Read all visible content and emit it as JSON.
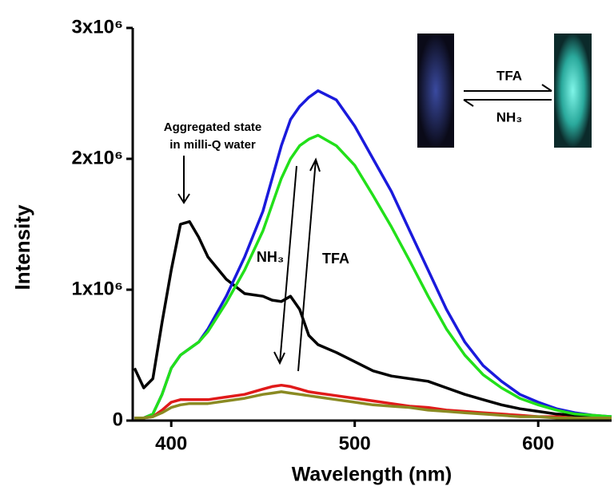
{
  "chart_data": {
    "type": "line",
    "xlabel": "Wavelength (nm)",
    "ylabel": "Intensity",
    "xlim": [
      379,
      640
    ],
    "ylim": [
      0,
      3000000
    ],
    "xticks": [
      400,
      500,
      600
    ],
    "yticks": [
      0,
      {
        "value": 1000000,
        "label": "1x10⁶"
      },
      {
        "value": 2000000,
        "label": "2x10⁶"
      },
      {
        "value": 3000000,
        "label": "3x10⁶"
      }
    ],
    "x": [
      380,
      385,
      390,
      395,
      400,
      405,
      410,
      415,
      420,
      430,
      440,
      450,
      455,
      460,
      465,
      470,
      475,
      480,
      490,
      500,
      510,
      520,
      530,
      540,
      550,
      560,
      570,
      580,
      590,
      600,
      610,
      620,
      630,
      640
    ],
    "series": [
      {
        "color": "#000000",
        "values": [
          400000,
          250000,
          320000,
          750000,
          1150000,
          1500000,
          1520000,
          1400000,
          1250000,
          1080000,
          970000,
          950000,
          920000,
          910000,
          950000,
          850000,
          650000,
          580000,
          520000,
          450000,
          380000,
          340000,
          320000,
          300000,
          250000,
          200000,
          160000,
          120000,
          90000,
          70000,
          50000,
          40000,
          30000,
          20000
        ]
      },
      {
        "color": "#1a1adc",
        "values": [
          20000,
          20000,
          50000,
          200000,
          400000,
          500000,
          550000,
          600000,
          700000,
          950000,
          1250000,
          1600000,
          1850000,
          2100000,
          2300000,
          2400000,
          2470000,
          2520000,
          2450000,
          2250000,
          2000000,
          1750000,
          1450000,
          1150000,
          850000,
          600000,
          420000,
          300000,
          200000,
          140000,
          90000,
          60000,
          40000,
          30000
        ]
      },
      {
        "color": "#22e01a",
        "values": [
          20000,
          20000,
          50000,
          200000,
          400000,
          500000,
          550000,
          600000,
          680000,
          900000,
          1150000,
          1450000,
          1650000,
          1850000,
          2000000,
          2100000,
          2150000,
          2180000,
          2100000,
          1950000,
          1720000,
          1480000,
          1220000,
          950000,
          700000,
          500000,
          350000,
          250000,
          170000,
          120000,
          80000,
          50000,
          40000,
          30000
        ]
      },
      {
        "color": "#e01a1a",
        "values": [
          20000,
          20000,
          30000,
          80000,
          140000,
          160000,
          160000,
          160000,
          160000,
          180000,
          200000,
          240000,
          260000,
          270000,
          260000,
          240000,
          220000,
          210000,
          190000,
          170000,
          150000,
          130000,
          110000,
          100000,
          80000,
          70000,
          60000,
          50000,
          40000,
          30000,
          30000,
          20000,
          20000,
          20000
        ]
      },
      {
        "color": "#8a8a22",
        "values": [
          20000,
          20000,
          30000,
          60000,
          100000,
          120000,
          130000,
          130000,
          130000,
          150000,
          170000,
          200000,
          210000,
          220000,
          210000,
          200000,
          190000,
          180000,
          160000,
          140000,
          120000,
          110000,
          100000,
          80000,
          70000,
          60000,
          50000,
          40000,
          30000,
          30000,
          20000,
          20000,
          20000,
          20000
        ]
      }
    ],
    "annotations": [
      "Aggregated state",
      "in milli-Q water",
      "NH₃",
      "TFA",
      "TFA",
      "NH₃"
    ]
  }
}
